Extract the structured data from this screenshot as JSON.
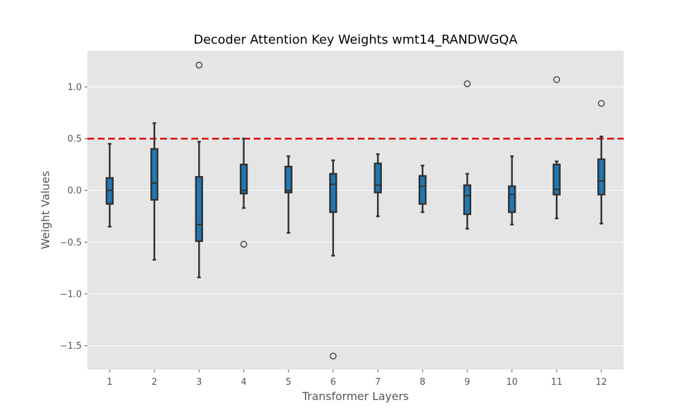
{
  "chart_data": {
    "type": "box",
    "title": "Decoder Attention Key Weights wmt14_RANDWGQA",
    "xlabel": "Transformer Layers",
    "ylabel": "Weight Values",
    "ylim": [
      -1.73,
      1.35
    ],
    "yticks": [
      1.0,
      0.5,
      0.0,
      -0.5,
      -1.0,
      -1.5
    ],
    "ytick_labels": [
      "1.0",
      "0.5",
      "0.0",
      "−0.5",
      "−1.0",
      "−1.5"
    ],
    "categories": [
      "1",
      "2",
      "3",
      "4",
      "5",
      "6",
      "7",
      "8",
      "9",
      "10",
      "11",
      "12"
    ],
    "threshold": 0.5,
    "grid": true,
    "colors": {
      "plot_background": "#e5e5e5",
      "box_fill": "#1f77b4",
      "box_edge": "#333333",
      "threshold_line": "#e00000",
      "grid": "#ffffff"
    },
    "boxes": [
      {
        "layer": "1",
        "whisker_low": -0.35,
        "q1": -0.13,
        "median": 0.0,
        "q3": 0.12,
        "whisker_high": 0.45,
        "outliers": []
      },
      {
        "layer": "2",
        "whisker_low": -0.67,
        "q1": -0.09,
        "median": 0.07,
        "q3": 0.4,
        "whisker_high": 0.65,
        "outliers": []
      },
      {
        "layer": "3",
        "whisker_low": -0.84,
        "q1": -0.49,
        "median": -0.33,
        "q3": 0.13,
        "whisker_high": 0.47,
        "outliers": [
          1.21
        ]
      },
      {
        "layer": "4",
        "whisker_low": -0.17,
        "q1": -0.03,
        "median": 0.0,
        "q3": 0.25,
        "whisker_high": 0.5,
        "outliers": [
          -0.52
        ]
      },
      {
        "layer": "5",
        "whisker_low": -0.41,
        "q1": -0.02,
        "median": 0.0,
        "q3": 0.23,
        "whisker_high": 0.33,
        "outliers": []
      },
      {
        "layer": "6",
        "whisker_low": -0.63,
        "q1": -0.21,
        "median": 0.06,
        "q3": 0.16,
        "whisker_high": 0.29,
        "outliers": [
          -1.6
        ]
      },
      {
        "layer": "7",
        "whisker_low": -0.25,
        "q1": -0.02,
        "median": 0.05,
        "q3": 0.26,
        "whisker_high": 0.35,
        "outliers": []
      },
      {
        "layer": "8",
        "whisker_low": -0.21,
        "q1": -0.13,
        "median": 0.04,
        "q3": 0.14,
        "whisker_high": 0.24,
        "outliers": []
      },
      {
        "layer": "9",
        "whisker_low": -0.37,
        "q1": -0.23,
        "median": -0.05,
        "q3": 0.05,
        "whisker_high": 0.16,
        "outliers": [
          1.03
        ]
      },
      {
        "layer": "10",
        "whisker_low": -0.33,
        "q1": -0.21,
        "median": -0.04,
        "q3": 0.04,
        "whisker_high": 0.33,
        "outliers": []
      },
      {
        "layer": "11",
        "whisker_low": -0.27,
        "q1": -0.04,
        "median": 0.01,
        "q3": 0.25,
        "whisker_high": 0.28,
        "outliers": [
          1.07
        ]
      },
      {
        "layer": "12",
        "whisker_low": -0.32,
        "q1": -0.04,
        "median": 0.09,
        "q3": 0.3,
        "whisker_high": 0.52,
        "outliers": [
          0.84
        ]
      }
    ]
  }
}
